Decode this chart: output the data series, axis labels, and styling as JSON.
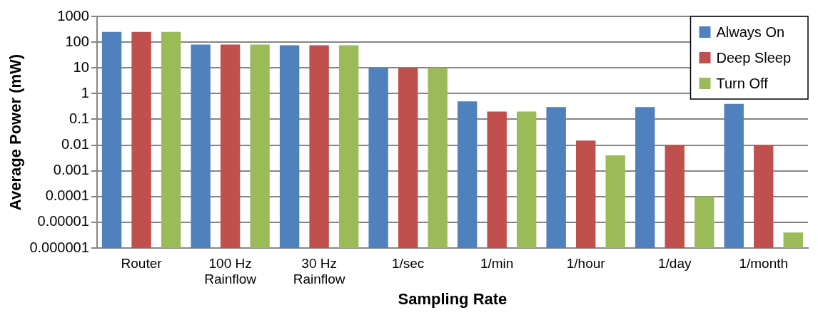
{
  "chart_data": {
    "type": "bar",
    "xlabel": "Sampling Rate",
    "ylabel": "Average Power (mW)",
    "categories": [
      "Router",
      "100 Hz\nRainflow",
      "30 Hz\nRainflow",
      "1/sec",
      "1/min",
      "1/hour",
      "1/day",
      "1/month"
    ],
    "series": [
      {
        "name": "Always On",
        "color": "#4f81bd",
        "values": [
          250,
          80,
          75,
          10,
          0.5,
          0.3,
          0.3,
          0.4
        ]
      },
      {
        "name": "Deep Sleep",
        "color": "#c0504d",
        "values": [
          250,
          80,
          75,
          10,
          0.2,
          0.015,
          0.01,
          0.01
        ]
      },
      {
        "name": "Turn Off",
        "color": "#9bbb59",
        "values": [
          250,
          80,
          75,
          10,
          0.2,
          0.004,
          0.0001,
          4e-06
        ]
      }
    ],
    "log": "y",
    "ylim": [
      1e-06,
      1000
    ],
    "yticks": [
      {
        "value": 1e-06,
        "label": "0.000001"
      },
      {
        "value": 1e-05,
        "label": "0.00001"
      },
      0.0001,
      0.001,
      0.01,
      0.1,
      1,
      10,
      100,
      1000
    ],
    "grid": "y",
    "legend": "top right"
  }
}
